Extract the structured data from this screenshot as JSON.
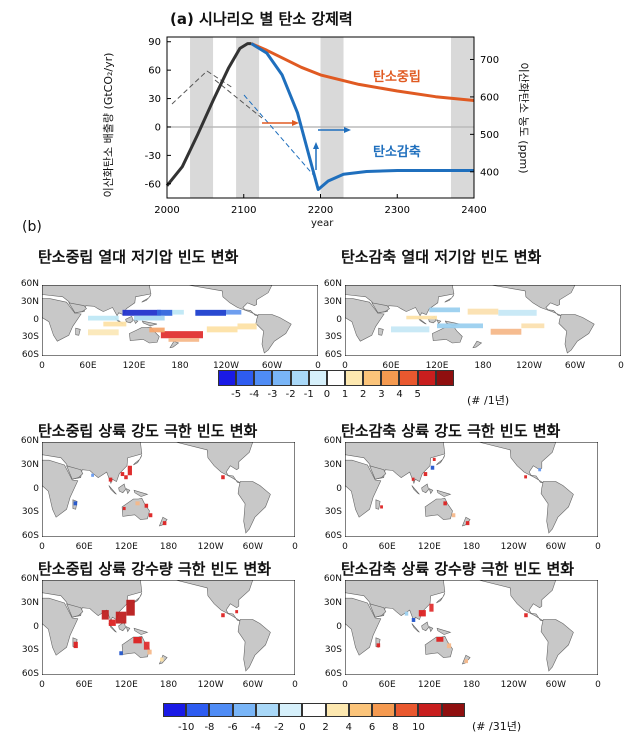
{
  "panel_a": {
    "title": "(a)  시나리오 별 탄소 강제력",
    "ylabel_left": "이산화탄소 배출량 (GtCO₂/yr)",
    "ylabel_right": "이산화탄소 농도 (ppm)",
    "xlabel": "year"
  },
  "panel_b": {
    "tag": "(b)",
    "maps": [
      {
        "title": "탄소중립 열대 저기압 빈도 변화"
      },
      {
        "title": "탄소감축 열대 저기압 빈도 변화"
      },
      {
        "title": "탄소중립 상륙 강도 극한 빈도 변화"
      },
      {
        "title": "탄소감축 상륙 강도 극한 빈도 변화"
      },
      {
        "title": "탄소중립 상륙 강수량 극한 빈도 변화"
      },
      {
        "title": "탄소감축 상륙 강수량 극한 빈도 변화"
      }
    ],
    "lat_ticks": [
      "60N",
      "30N",
      "0",
      "30S",
      "60S"
    ],
    "lon_ticks": [
      "0",
      "60E",
      "120E",
      "180",
      "120W",
      "60W",
      "0"
    ],
    "colorbar1": {
      "labels": [
        "-5",
        "-4",
        "-3",
        "-2",
        "-1",
        "0",
        "1",
        "2",
        "3",
        "4",
        "5"
      ],
      "unit": "(# /1년)"
    },
    "colorbar2": {
      "labels": [
        "-10",
        "-8",
        "-6",
        "-4",
        "-2",
        "0",
        "2",
        "4",
        "6",
        "8",
        "10"
      ],
      "unit": "(# /31년)"
    }
  },
  "chart_data": {
    "type": "line",
    "title": "(a)  시나리오 별 탄소 강제력",
    "xlabel": "year",
    "ylabel": "이산화탄소 배출량 (GtCO₂/yr)",
    "y2label": "이산화탄소 농도 (ppm)",
    "xlim": [
      2000,
      2400
    ],
    "ylim": [
      -75,
      95
    ],
    "y2lim": [
      330,
      760
    ],
    "x_ticks": [
      2000,
      2100,
      2200,
      2300,
      2400
    ],
    "y_ticks": [
      -60,
      -30,
      0,
      30,
      60,
      90
    ],
    "y2_ticks": [
      400,
      500,
      600,
      700
    ],
    "shaded_periods": [
      [
        2030,
        2060
      ],
      [
        2090,
        2120
      ],
      [
        2200,
        2230
      ],
      [
        2370,
        2400
      ]
    ],
    "series": [
      {
        "name": "",
        "color": "#333333",
        "x": [
          2000,
          2020,
          2040,
          2060,
          2080,
          2095,
          2105,
          2110
        ],
        "y": [
          -62,
          -42,
          -8,
          28,
          62,
          83,
          88,
          88
        ]
      },
      {
        "name": "탄소중립",
        "color": "#e05a22",
        "x": [
          2110,
          2130,
          2150,
          2175,
          2200,
          2250,
          2300,
          2350,
          2400
        ],
        "y": [
          88,
          81,
          73,
          63,
          55,
          45,
          38,
          32,
          28
        ]
      },
      {
        "name": "탄소감축",
        "color": "#1f6fbd",
        "x": [
          2110,
          2130,
          2150,
          2170,
          2190,
          2197,
          2210,
          2230,
          2260,
          2300,
          2350,
          2400
        ],
        "y": [
          88,
          78,
          55,
          15,
          -45,
          -66,
          -57,
          -50,
          -47,
          -46,
          -46,
          -46
        ]
      }
    ],
    "colors": {
      "gray_band": "#d9d9d9",
      "zero_line": "#bbbbbb"
    }
  }
}
